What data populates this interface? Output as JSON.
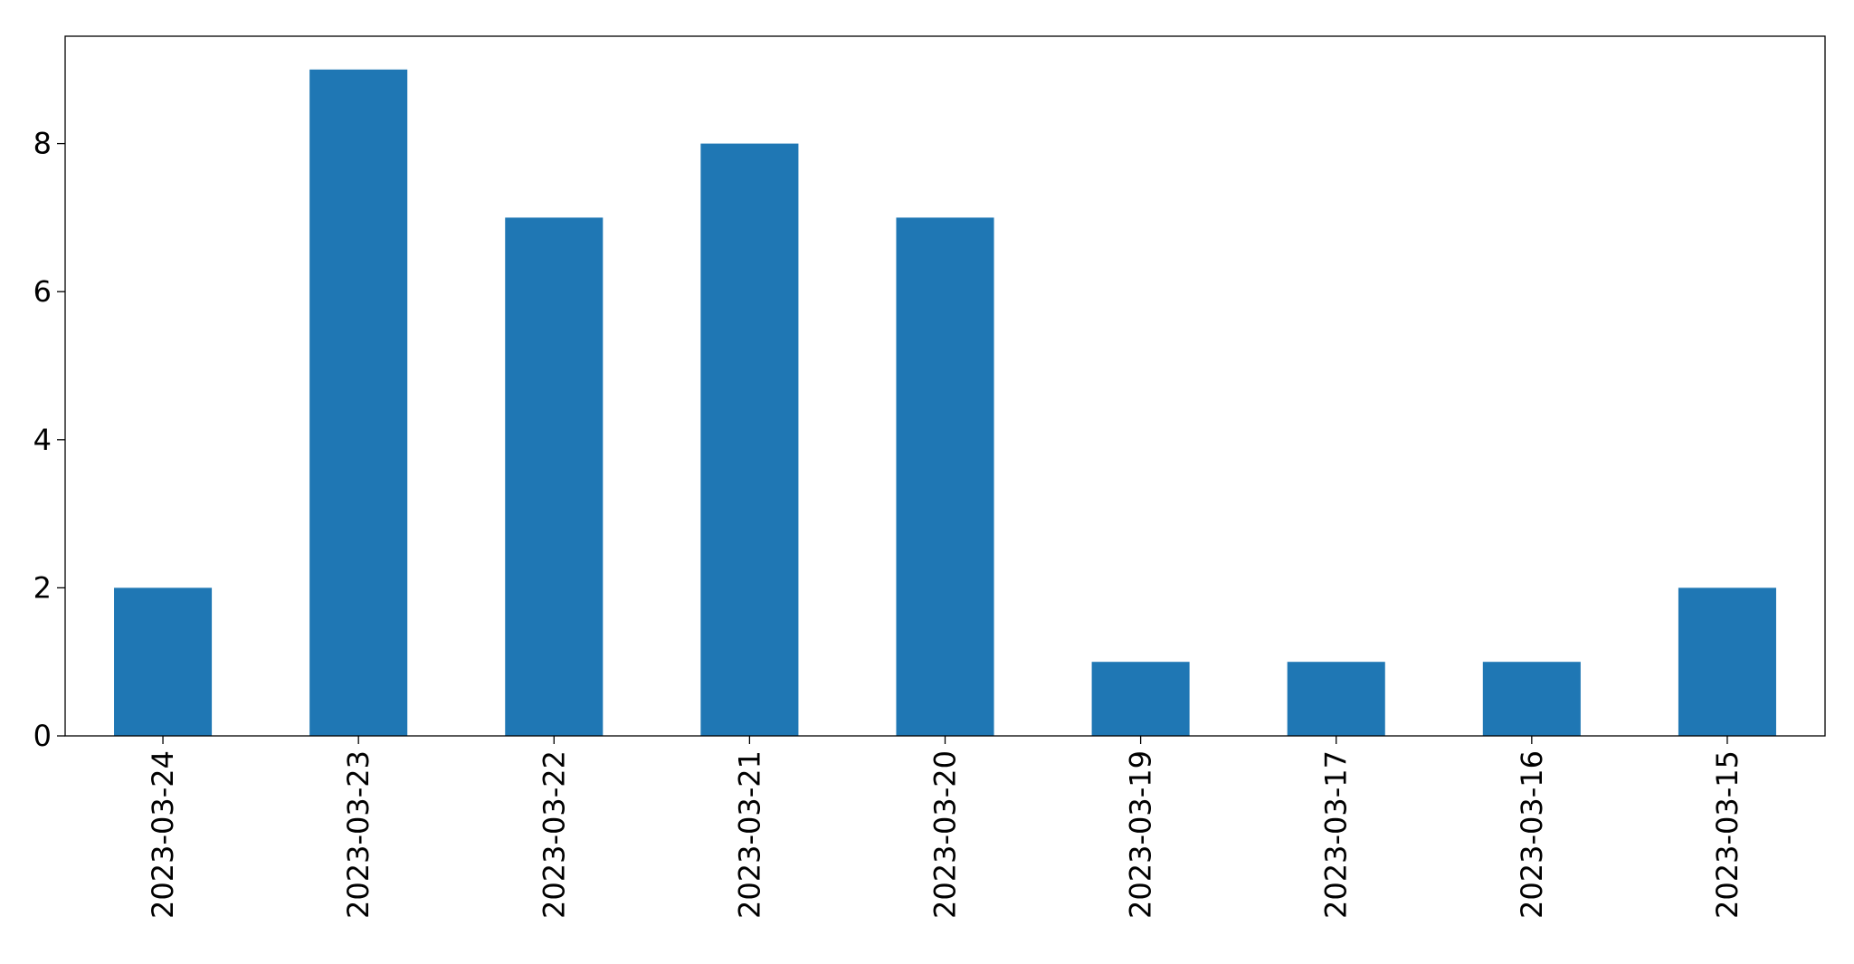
{
  "chart_data": {
    "type": "bar",
    "title": "",
    "xlabel": "",
    "ylabel": "",
    "categories": [
      "2023-03-24",
      "2023-03-23",
      "2023-03-22",
      "2023-03-21",
      "2023-03-20",
      "2023-03-19",
      "2023-03-17",
      "2023-03-16",
      "2023-03-15"
    ],
    "values": [
      2,
      9,
      7,
      8,
      7,
      1,
      1,
      1,
      2
    ],
    "ylim": [
      0,
      9.45
    ],
    "yticks": [
      0,
      2,
      4,
      6,
      8
    ],
    "ytick_labels": [
      "0",
      "2",
      "4",
      "6",
      "8"
    ],
    "grid": false,
    "legend": "none",
    "bar_color": "#1f77b4"
  }
}
